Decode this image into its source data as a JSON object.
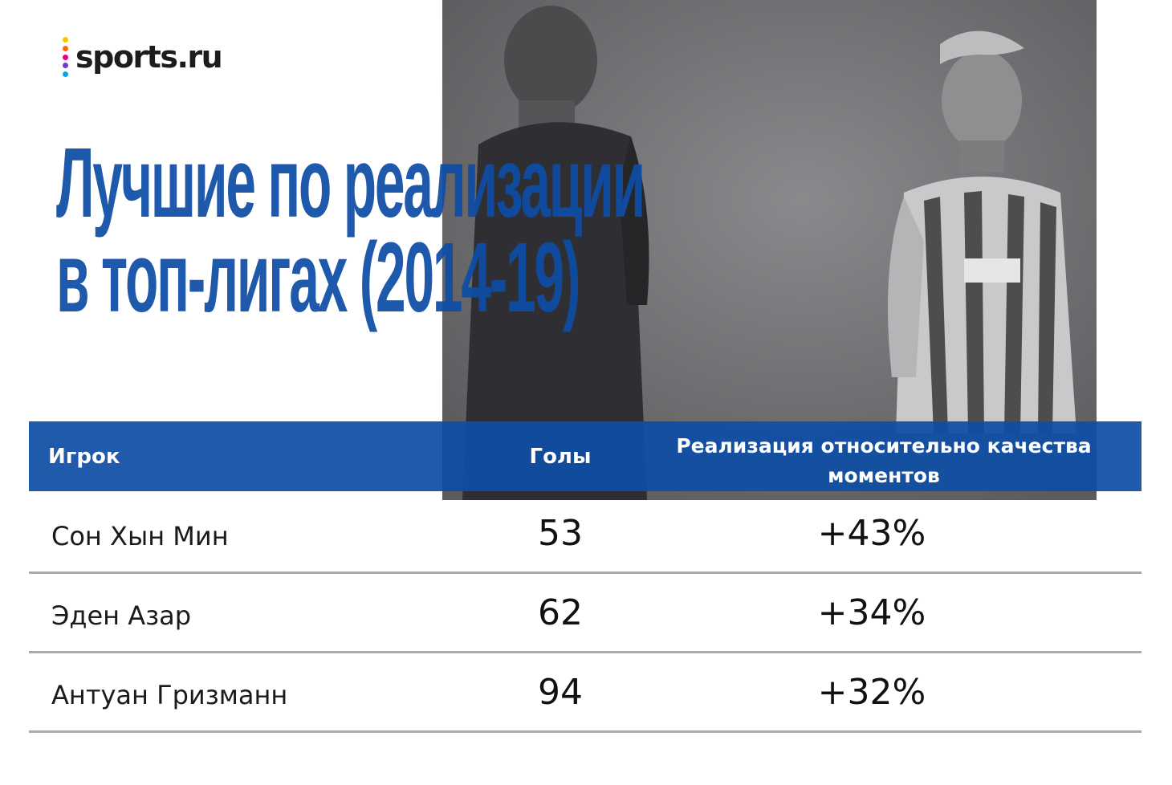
{
  "logo": {
    "text": "sports.ru",
    "dot_colors": [
      "#f7c600",
      "#ff6a00",
      "#e2008a",
      "#6b3fc6",
      "#00a8e8"
    ]
  },
  "title": {
    "line1": "Лучшие по реализации",
    "line2": "в топ-лигах (2014-19)"
  },
  "colors": {
    "accent": "#0e4da5",
    "photo_tint": "#6f6f72",
    "divider": "#aaaaaa"
  },
  "chart_data": {
    "type": "table",
    "title": "Лучшие по реализации в топ-лигах (2014-19)",
    "columns": [
      "Игрок",
      "Голы",
      "Реализация относительно качества моментов"
    ],
    "rows": [
      {
        "player": "Сон Хын Мин",
        "goals": "53",
        "realization": "+43%"
      },
      {
        "player": "Эден Азар",
        "goals": "62",
        "realization": "+34%"
      },
      {
        "player": "Антуан Гризманн",
        "goals": "94",
        "realization": "+32%"
      }
    ]
  }
}
